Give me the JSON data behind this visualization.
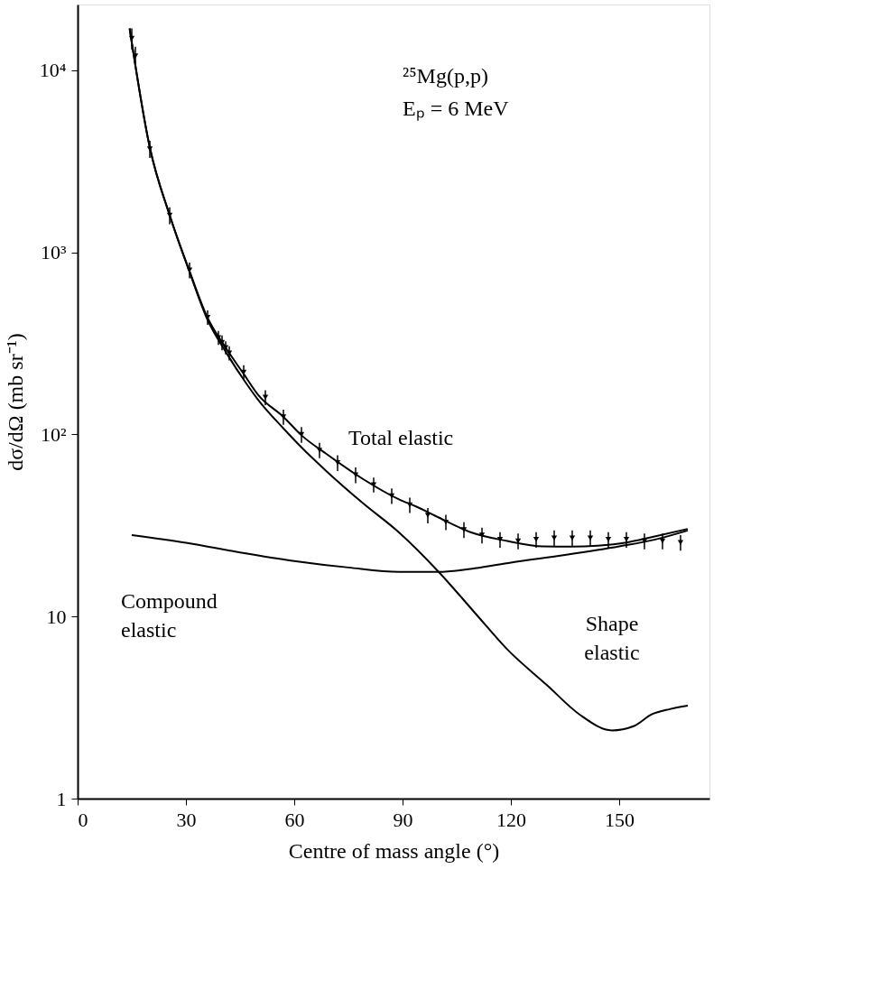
{
  "chart_data": {
    "type": "line",
    "xlabel": "Centre of mass angle (°)",
    "ylabel": "dσ/dΩ (mb sr⁻¹)",
    "log": "y",
    "grid": false,
    "line_style": "solid",
    "xlim": [
      0,
      175
    ],
    "xticks": [
      0,
      30,
      60,
      90,
      120,
      150
    ],
    "ylim": [
      1,
      23000
    ],
    "yticks": [
      1,
      10,
      {
        "value": 100,
        "label": "10²"
      },
      {
        "value": 1000,
        "label": "10³"
      },
      {
        "value": 10000,
        "label": "10⁴"
      }
    ],
    "annotations": [
      "²⁵Mg(p,p)",
      "Eₚ = 6 MeV"
    ],
    "series": [
      {
        "name": "Total elastic",
        "color": "#000000",
        "x": [
          14.4,
          20,
          25.5,
          31,
          36,
          41,
          46,
          50,
          57,
          62,
          69,
          79,
          89,
          94,
          100,
          109,
          119,
          129,
          137,
          144,
          152,
          159,
          169
        ],
        "values": [
          17000,
          3770,
          1600,
          790,
          437,
          300,
          215,
          165,
          125,
          99,
          78,
          57,
          44,
          40,
          35,
          29,
          26,
          24.3,
          24.2,
          24.5,
          25.5,
          27.3,
          30.3
        ]
      },
      {
        "name": "Compound elastic",
        "color": "#000000",
        "x": [
          15,
          30,
          45,
          60,
          75,
          89,
          100,
          110,
          120,
          135,
          150,
          160,
          169
        ],
        "values": [
          28,
          25.4,
          22.5,
          20.2,
          18.6,
          17.6,
          17.6,
          18.4,
          19.8,
          21.8,
          24.3,
          26.5,
          29.7
        ]
      },
      {
        "name": "Shape elastic",
        "color": "#000000",
        "x": [
          14.4,
          20,
          25.5,
          31,
          36,
          41,
          46,
          50,
          57,
          62,
          69,
          79,
          89,
          100,
          110,
          119,
          130,
          139,
          148,
          154,
          159,
          164,
          169
        ],
        "values": [
          17000,
          3770,
          1600,
          780,
          425,
          285,
          200,
          155,
          108,
          85,
          62.7,
          42,
          29,
          17.6,
          10.5,
          6.6,
          4.2,
          2.9,
          2.37,
          2.5,
          2.9,
          3.1,
          3.24
        ]
      },
      {
        "type": "scatter",
        "color": "#000000",
        "marker": "triangle",
        "x": [
          15,
          16,
          20,
          25.5,
          31,
          36,
          39,
          40,
          41,
          42,
          46,
          52,
          57,
          62,
          67,
          72,
          77,
          82,
          87,
          92,
          97,
          102,
          107,
          112,
          117,
          122,
          127,
          132,
          137,
          142,
          147,
          152,
          157,
          162,
          167
        ],
        "values": [
          15000,
          12000,
          3700,
          1600,
          800,
          440,
          340,
          320,
          300,
          280,
          220,
          160,
          125,
          100,
          82,
          70,
          60,
          53,
          46,
          41,
          36,
          33,
          30,
          28,
          26.5,
          26,
          26.5,
          27,
          27,
          27,
          26.5,
          26.5,
          26,
          26,
          25.5
        ],
        "errors": [
          2000,
          1500,
          400,
          170,
          80,
          40,
          30,
          30,
          25,
          25,
          20,
          15,
          12,
          10,
          8,
          7,
          6,
          5,
          4.5,
          4,
          3.5,
          3.2,
          3,
          2.8,
          2.6,
          2.6,
          2.6,
          2.7,
          2.7,
          2.7,
          2.6,
          2.6,
          2.6,
          2.6,
          2.5
        ]
      }
    ]
  }
}
